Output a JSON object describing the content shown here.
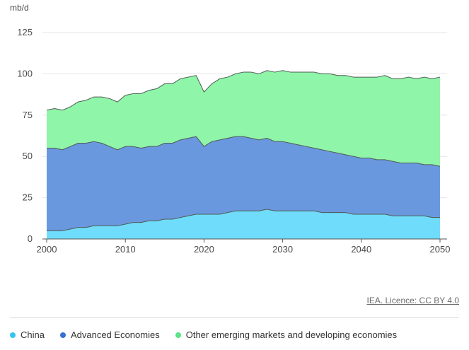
{
  "credit": "IEA. Licence: CC BY 4.0",
  "colors": {
    "China": "#6fdcfb",
    "Advanced Economies": "#6a98de",
    "Other emerging markets and developing economies": "#8ff5a9",
    "legend_China": "#36c4ef",
    "legend_Advanced Economies": "#3a6fcf",
    "legend_Other emerging markets and developing economies": "#5ae483"
  },
  "chart_data": {
    "type": "area",
    "stacked": true,
    "yunit": "mb/d",
    "xlabel": "",
    "ylabel": "",
    "xlim": [
      2000,
      2050
    ],
    "ylim": [
      0,
      125
    ],
    "xticks": [
      2000,
      2010,
      2020,
      2030,
      2040,
      2050
    ],
    "yticks": [
      0,
      25,
      50,
      75,
      100,
      125
    ],
    "grid": "horizontal",
    "legend_position": "bottom",
    "x": [
      2000,
      2001,
      2002,
      2003,
      2004,
      2005,
      2006,
      2007,
      2008,
      2009,
      2010,
      2011,
      2012,
      2013,
      2014,
      2015,
      2016,
      2017,
      2018,
      2019,
      2020,
      2021,
      2022,
      2023,
      2024,
      2025,
      2026,
      2027,
      2028,
      2029,
      2030,
      2031,
      2032,
      2033,
      2034,
      2035,
      2036,
      2037,
      2038,
      2039,
      2040,
      2041,
      2042,
      2043,
      2044,
      2045,
      2046,
      2047,
      2048,
      2049,
      2050
    ],
    "series": [
      {
        "name": "China",
        "values": [
          5,
          5,
          5,
          6,
          7,
          7,
          8,
          8,
          8,
          8,
          9,
          10,
          10,
          11,
          11,
          12,
          12,
          13,
          14,
          15,
          15,
          15,
          15,
          16,
          17,
          17,
          17,
          17,
          18,
          17,
          17,
          17,
          17,
          17,
          17,
          16,
          16,
          16,
          16,
          15,
          15,
          15,
          15,
          15,
          14,
          14,
          14,
          14,
          14,
          13,
          13
        ]
      },
      {
        "name": "Advanced Economies",
        "values": [
          50,
          50,
          49,
          50,
          51,
          51,
          51,
          50,
          48,
          46,
          47,
          46,
          45,
          45,
          45,
          46,
          46,
          47,
          47,
          47,
          41,
          44,
          45,
          45,
          45,
          45,
          44,
          43,
          43,
          42,
          42,
          41,
          40,
          39,
          38,
          38,
          37,
          36,
          35,
          35,
          34,
          34,
          33,
          33,
          33,
          32,
          32,
          32,
          31,
          32,
          31
        ]
      },
      {
        "name": "Other emerging markets and developing economies",
        "values": [
          23,
          24,
          24,
          24,
          25,
          26,
          27,
          28,
          29,
          29,
          31,
          32,
          33,
          34,
          35,
          36,
          36,
          37,
          37,
          37,
          33,
          35,
          37,
          37,
          38,
          39,
          40,
          40,
          41,
          42,
          43,
          43,
          44,
          45,
          46,
          46,
          47,
          47,
          48,
          48,
          49,
          49,
          50,
          51,
          50,
          51,
          52,
          51,
          53,
          52,
          54
        ]
      }
    ]
  }
}
